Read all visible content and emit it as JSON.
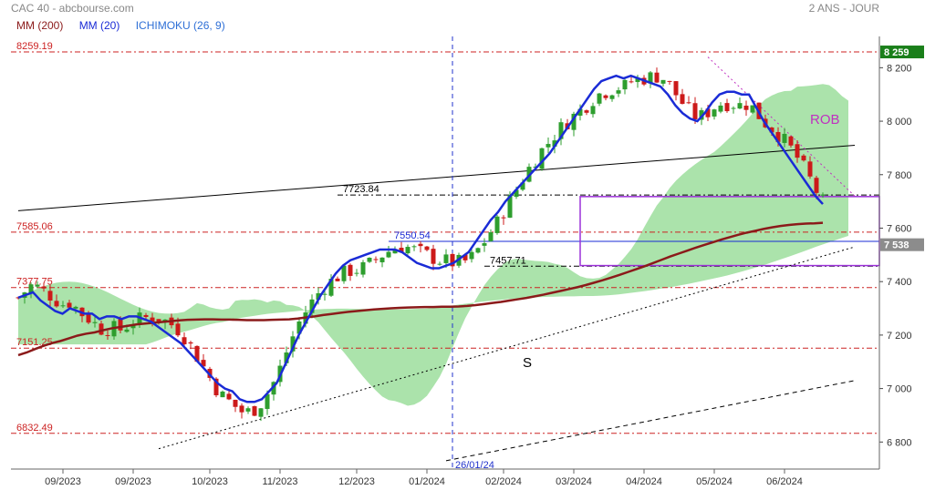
{
  "header": {
    "title": "CAC 40 - abcbourse.com",
    "period": "2 ANS - JOUR"
  },
  "legend": [
    {
      "label": "MM (200)",
      "color": "#8b1a1a"
    },
    {
      "label": "MM (20)",
      "color": "#1a2bd6"
    },
    {
      "label": "ICHIMOKU (26, 9)",
      "color": "#2e6fd6"
    }
  ],
  "colors": {
    "up": "#2e9e2e",
    "down": "#cc1a1a",
    "mm200": "#8b1a1a",
    "mm20": "#1a2bd6",
    "cloud_bull": "#8fd98f",
    "cloud_bear": "#c9aef0",
    "support": "#cc2222",
    "rect": "#9b30d9",
    "rob": "#c030c0",
    "vline": "#2233cc",
    "last_price_bg": "#8c8c8c",
    "high_bg": "#1a7f1a"
  },
  "chart_data": {
    "type": "candlestick",
    "title": "CAC 40",
    "y_axis": {
      "ticks": [
        6800,
        7000,
        7200,
        7400,
        7600,
        7800,
        8000,
        8200
      ],
      "tick_labels": [
        "6 800",
        "7 000",
        "7 200",
        "7 400",
        "7 600",
        "7 800",
        "8 000",
        "8 200"
      ],
      "range": [
        6750,
        8300
      ],
      "position": "right"
    },
    "x_axis": {
      "labels": [
        "09/2023",
        "09/2023",
        "10/2023",
        "11/2023",
        "12/2023",
        "01/2024",
        "02/2024",
        "03/2024",
        "04/2024",
        "05/2024",
        "06/2024"
      ],
      "label_index": [
        7,
        18,
        30,
        41,
        53,
        64,
        76,
        87,
        98,
        109,
        120
      ],
      "count": 131
    },
    "grid": false,
    "levels": [
      {
        "value": 8259.19,
        "label": "8259.19",
        "style": "dashdot",
        "color": "#cc2222"
      },
      {
        "value": 7585.06,
        "label": "7585.06",
        "style": "dashdot",
        "color": "#cc2222"
      },
      {
        "value": 7377.75,
        "label": "7377.75",
        "style": "dashdot",
        "color": "#cc2222"
      },
      {
        "value": 7151.25,
        "label": "7151.25",
        "style": "dashdot",
        "color": "#cc2222"
      },
      {
        "value": 6832.49,
        "label": "6832.49",
        "style": "dashdot",
        "color": "#cc2222"
      },
      {
        "value": 7723.84,
        "label": "7723.84",
        "style": "dashdot",
        "color": "#000000",
        "from_index": 50
      },
      {
        "value": 7550.54,
        "label": "7550.54",
        "style": "solid",
        "color": "#1a2bd6",
        "from_index": 58
      },
      {
        "value": 7457.71,
        "label": "7457.71",
        "style": "dashdot",
        "color": "#000000",
        "from_index": 73
      }
    ],
    "price_labels": [
      {
        "value": 8259,
        "label": "8 259",
        "kind": "high"
      },
      {
        "value": 7538,
        "label": "7 538",
        "kind": "last"
      }
    ],
    "vline": {
      "index": 68,
      "label": "26/01/24"
    },
    "annotations": [
      {
        "text": "S",
        "index": 79,
        "value": 7080
      },
      {
        "text": "ROB",
        "index": 124,
        "value": 7990
      }
    ],
    "trend_lines": [
      {
        "from": [
          0,
          7665
        ],
        "to": [
          131,
          7910
        ],
        "style": "solid",
        "color": "#000000"
      },
      {
        "from": [
          22,
          6775
        ],
        "to": [
          131,
          7530
        ],
        "style": "dotted",
        "color": "#000000"
      },
      {
        "from": [
          67,
          6730
        ],
        "to": [
          131,
          7030
        ],
        "style": "dashed",
        "color": "#000000"
      },
      {
        "from": [
          108,
          8240
        ],
        "to": [
          131,
          7720
        ],
        "style": "dotted",
        "color": "#c030c0"
      }
    ],
    "rectangle": {
      "from_index": 88,
      "to_index": 131,
      "top": 7718,
      "bottom": 7460
    },
    "ohlc": [],
    "mm20": [
      7340,
      7350,
      7360,
      7330,
      7310,
      7290,
      7280,
      7300,
      7290,
      7280,
      7280,
      7260,
      7270,
      7270,
      7260,
      7270,
      7270,
      7260,
      7250,
      7230,
      7210,
      7190,
      7170,
      7140,
      7110,
      7080,
      7050,
      7020,
      7000,
      6990,
      6960,
      6950,
      6950,
      6960,
      6990,
      7020,
      7080,
      7140,
      7200,
      7250,
      7300,
      7350,
      7390,
      7430,
      7460,
      7480,
      7490,
      7500,
      7510,
      7520,
      7520,
      7520,
      7510,
      7490,
      7470,
      7460,
      7450,
      7450,
      7460,
      7470,
      7490,
      7510,
      7550,
      7590,
      7630,
      7660,
      7700,
      7730,
      7760,
      7790,
      7820,
      7850,
      7880,
      7920,
      7960,
      8000,
      8040,
      8080,
      8120,
      8150,
      8160,
      8170,
      8160,
      8170,
      8160,
      8150,
      8140,
      8130,
      8100,
      8060,
      8030,
      8010,
      8000,
      8030,
      8070,
      8100,
      8110,
      8110,
      8100,
      8100,
      8050,
      8000,
      7960,
      7920,
      7880,
      7840,
      7800,
      7760,
      7720,
      7690
    ],
    "mm200": [
      7125,
      7135,
      7148,
      7160,
      7170,
      7178,
      7188,
      7198,
      7205,
      7210,
      7218,
      7225,
      7230,
      7235,
      7240,
      7243,
      7246,
      7249,
      7252,
      7255,
      7257,
      7258,
      7259,
      7259,
      7258,
      7258,
      7257,
      7256,
      7256,
      7256,
      7257,
      7258,
      7259,
      7262,
      7266,
      7270,
      7275,
      7279,
      7283,
      7287,
      7290,
      7293,
      7296,
      7298,
      7300,
      7302,
      7303,
      7304,
      7305,
      7305,
      7306,
      7306,
      7307,
      7309,
      7312,
      7316,
      7320,
      7324,
      7329,
      7334,
      7339,
      7345,
      7351,
      7358,
      7365,
      7372,
      7379,
      7387,
      7396,
      7405,
      7415,
      7425,
      7436,
      7447,
      7458,
      7470,
      7482,
      7494,
      7505,
      7516,
      7527,
      7537,
      7547,
      7557,
      7566,
      7575,
      7583,
      7590,
      7597,
      7603,
      7608,
      7612,
      7615,
      7617,
      7618,
      7620
    ]
  }
}
